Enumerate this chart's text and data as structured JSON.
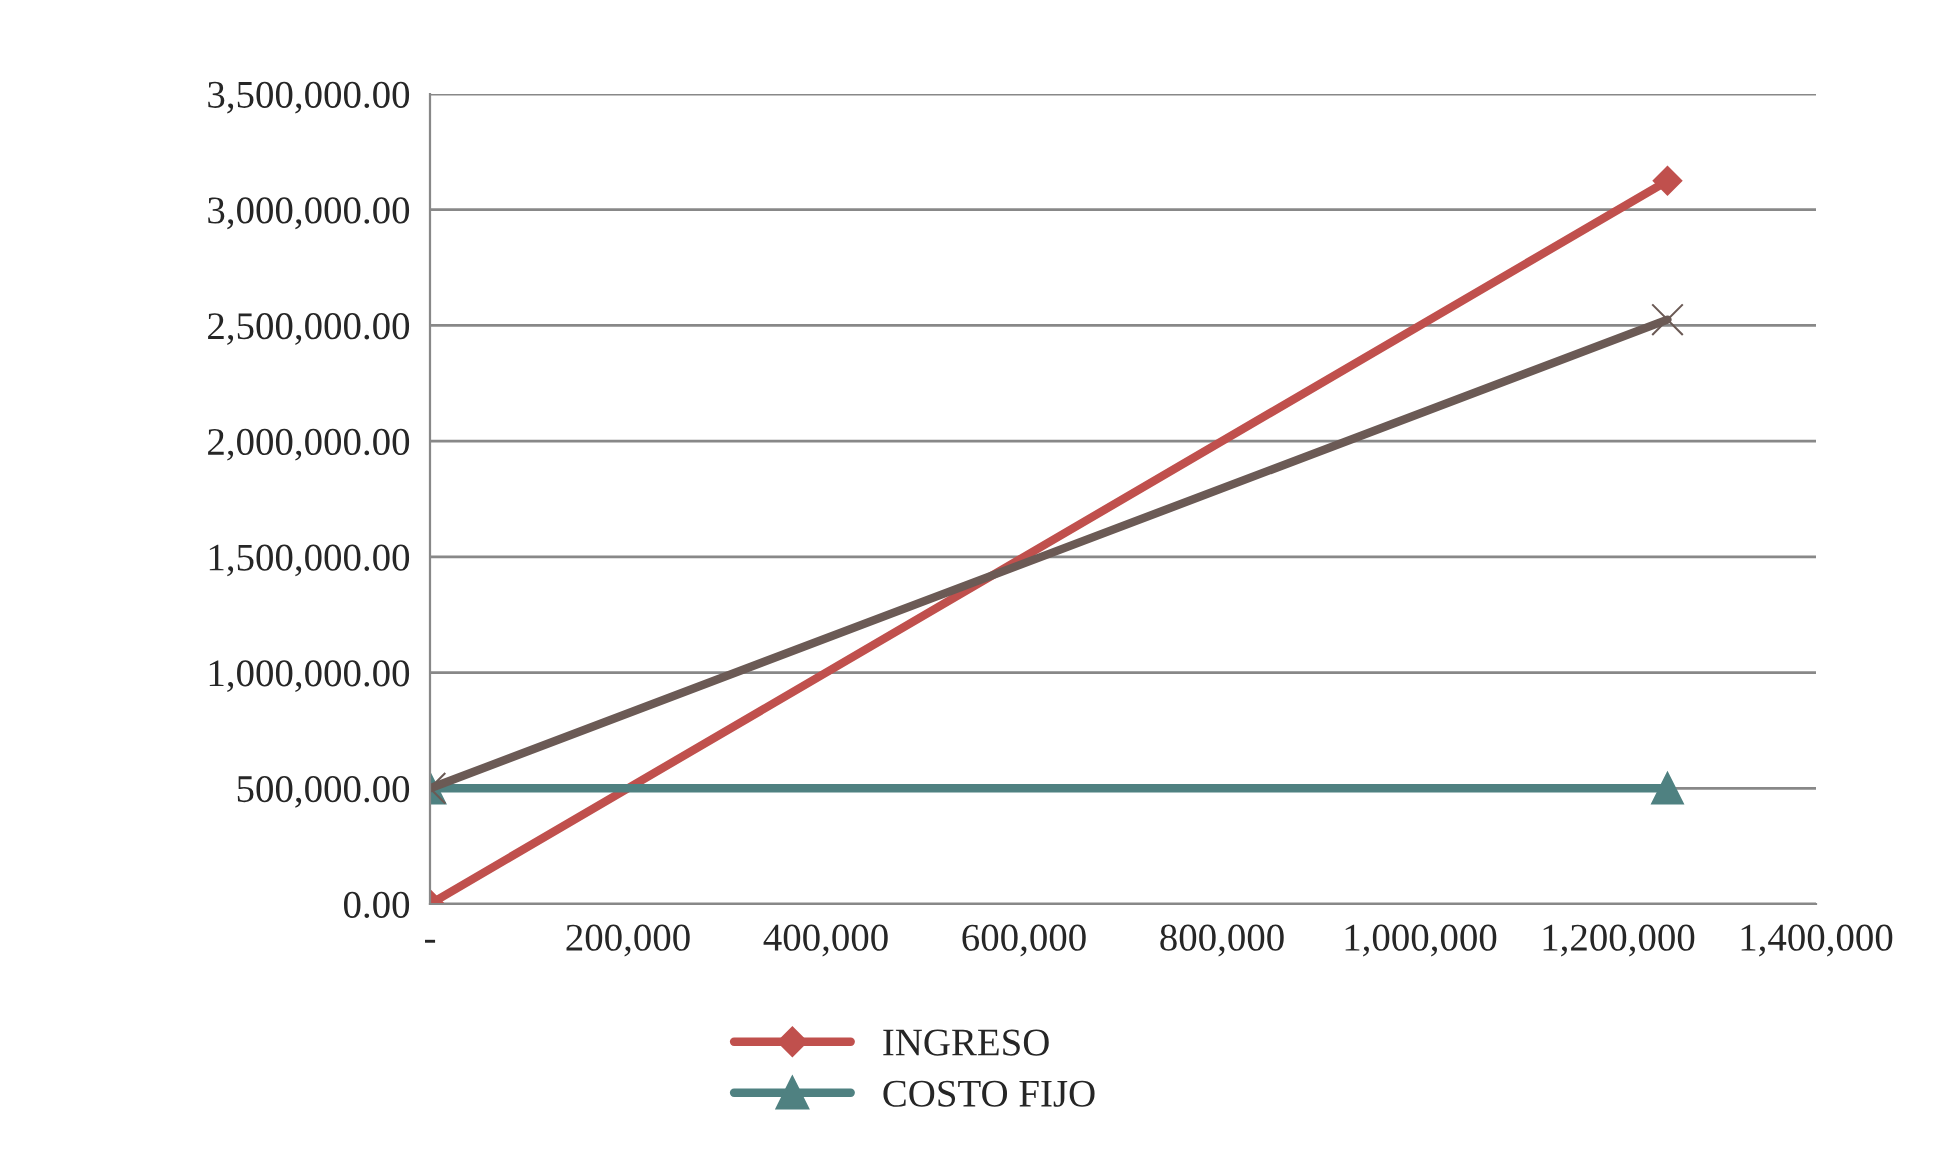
{
  "chart_data": {
    "type": "line",
    "x": [
      0,
      1250000
    ],
    "series": [
      {
        "name": "INGRESO",
        "color": "#c0504d",
        "values": [
          0,
          3125000
        ],
        "marker": "diamond"
      },
      {
        "name": "COSTO FIJO",
        "color": "#4f8181",
        "values": [
          500000,
          500000
        ],
        "marker": "triangle"
      },
      {
        "color": "#6b5a55",
        "values": [
          500000,
          2525000
        ],
        "marker": "cross"
      }
    ],
    "xlim": [
      0,
      1400000
    ],
    "xticks": [
      {
        "value": 0,
        "label": "-"
      },
      {
        "value": 200000,
        "label": "200,000"
      },
      {
        "value": 400000,
        "label": "400,000"
      },
      {
        "value": 600000,
        "label": "600,000"
      },
      {
        "value": 800000,
        "label": "800,000"
      },
      {
        "value": 1000000,
        "label": "1,000,000"
      },
      {
        "value": 1200000,
        "label": "1,200,000"
      },
      {
        "value": 1400000,
        "label": "1,400,000"
      }
    ],
    "ylim": [
      0,
      3500000
    ],
    "yticks": [
      {
        "value": 0,
        "label": "0.00"
      },
      {
        "value": 500000,
        "label": "500,000.00"
      },
      {
        "value": 1000000,
        "label": "1,000,000.00"
      },
      {
        "value": 1500000,
        "label": "1,500,000.00"
      },
      {
        "value": 2000000,
        "label": "2,000,000.00"
      },
      {
        "value": 2500000,
        "label": "2,500,000.00"
      },
      {
        "value": 3000000,
        "label": "3,000,000.00"
      },
      {
        "value": 3500000,
        "label": "3,500,000.00"
      }
    ],
    "grid": "y",
    "legend": "bottom",
    "line_style": "solid"
  }
}
